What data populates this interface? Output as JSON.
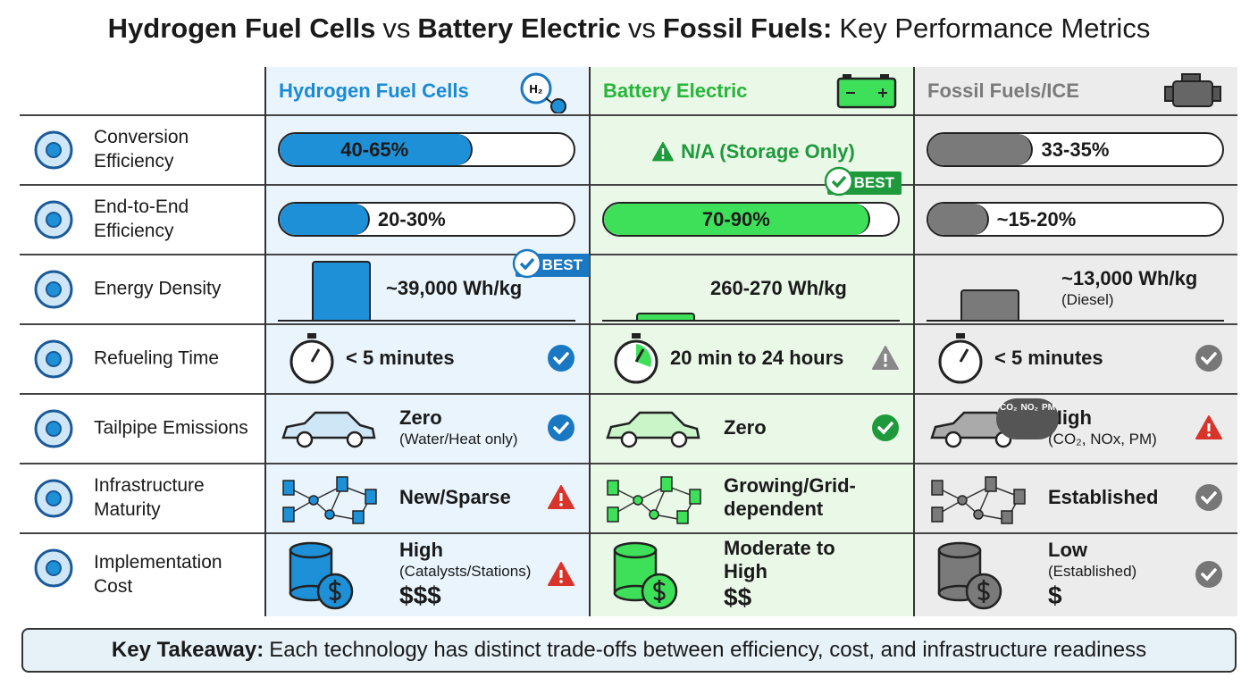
{
  "header": {
    "title_parts": [
      {
        "text": "Hydrogen Fuel Cells",
        "bold": true
      },
      {
        "text": "vs",
        "bold": false
      },
      {
        "text": "Battery Electric",
        "bold": true
      },
      {
        "text": "vs",
        "bold": false
      },
      {
        "text": "Fossil Fuels:",
        "bold": true
      },
      {
        "text": "Key Performance Metrics",
        "bold": false
      }
    ]
  },
  "columns": [
    {
      "name": "Hydrogen Fuel Cells",
      "color": "#1a8ad4",
      "icon_text": "H₂"
    },
    {
      "name": "Battery Electric",
      "color": "#27b53a"
    },
    {
      "name": "Fossil Fuels/ICE",
      "color": "#7a7a7a"
    }
  ],
  "rows": [
    {
      "label": "Conversion Efficiency",
      "visual": "bar",
      "cells": [
        {
          "text": "40-65%"
        },
        {
          "text": "N/A (Storage Only)",
          "note": "warning"
        },
        {
          "text": "33-35%"
        }
      ]
    },
    {
      "label": "End-to-End Efficiency",
      "visual": "bar",
      "cells": [
        {
          "text": "20-30%"
        },
        {
          "text": "70-90%",
          "badge": "BEST"
        },
        {
          "text": "~15-20%"
        }
      ]
    },
    {
      "label": "Energy Density",
      "visual": "density",
      "cells": [
        {
          "text": "~39,000 Wh/kg",
          "badge": "BEST",
          "density": "tall"
        },
        {
          "text": "260-270 Wh/kg",
          "density": "flat"
        },
        {
          "text": "~13,000 Wh/kg",
          "subtext": "(Diesel)",
          "density": "medium"
        }
      ]
    },
    {
      "label": "Refueling Time",
      "visual": "stopwatch",
      "cells": [
        {
          "text": "< 5 minutes",
          "status": "check"
        },
        {
          "text": "20 min to 24 hours",
          "status": "warning"
        },
        {
          "text": "< 5 minutes",
          "status": "check"
        }
      ]
    },
    {
      "label": "Tailpipe Emissions",
      "visual": "car",
      "cells": [
        {
          "text": "Zero",
          "subtext": "(Water/Heat only)",
          "status": "check"
        },
        {
          "text": "Zero",
          "status": "check"
        },
        {
          "text": "High",
          "subtext": "(CO₂, NOx, PM)",
          "status": "warning",
          "icon_text": [
            "CO₂",
            "NO₂",
            "PM"
          ]
        }
      ]
    },
    {
      "label": "Infrastructure Maturity",
      "visual": "network",
      "cells": [
        {
          "text": "New/Sparse",
          "status": "warning"
        },
        {
          "text": "Growing/Grid-dependent"
        },
        {
          "text": "Established",
          "status": "check"
        }
      ]
    },
    {
      "label": "Implementation Cost",
      "visual": "coins",
      "cells": [
        {
          "text": "High",
          "subtext": "(Catalysts/Stations)",
          "cost": "$$$",
          "status": "warning"
        },
        {
          "text": "Moderate to High",
          "cost": "$$"
        },
        {
          "text": "Low",
          "subtext": "(Established)",
          "cost": "$",
          "status": "check"
        }
      ]
    }
  ],
  "footer": {
    "label": "Key Takeaway:",
    "text": "Each technology has distinct trade-offs between efficiency, cost, and infrastructure readiness"
  }
}
